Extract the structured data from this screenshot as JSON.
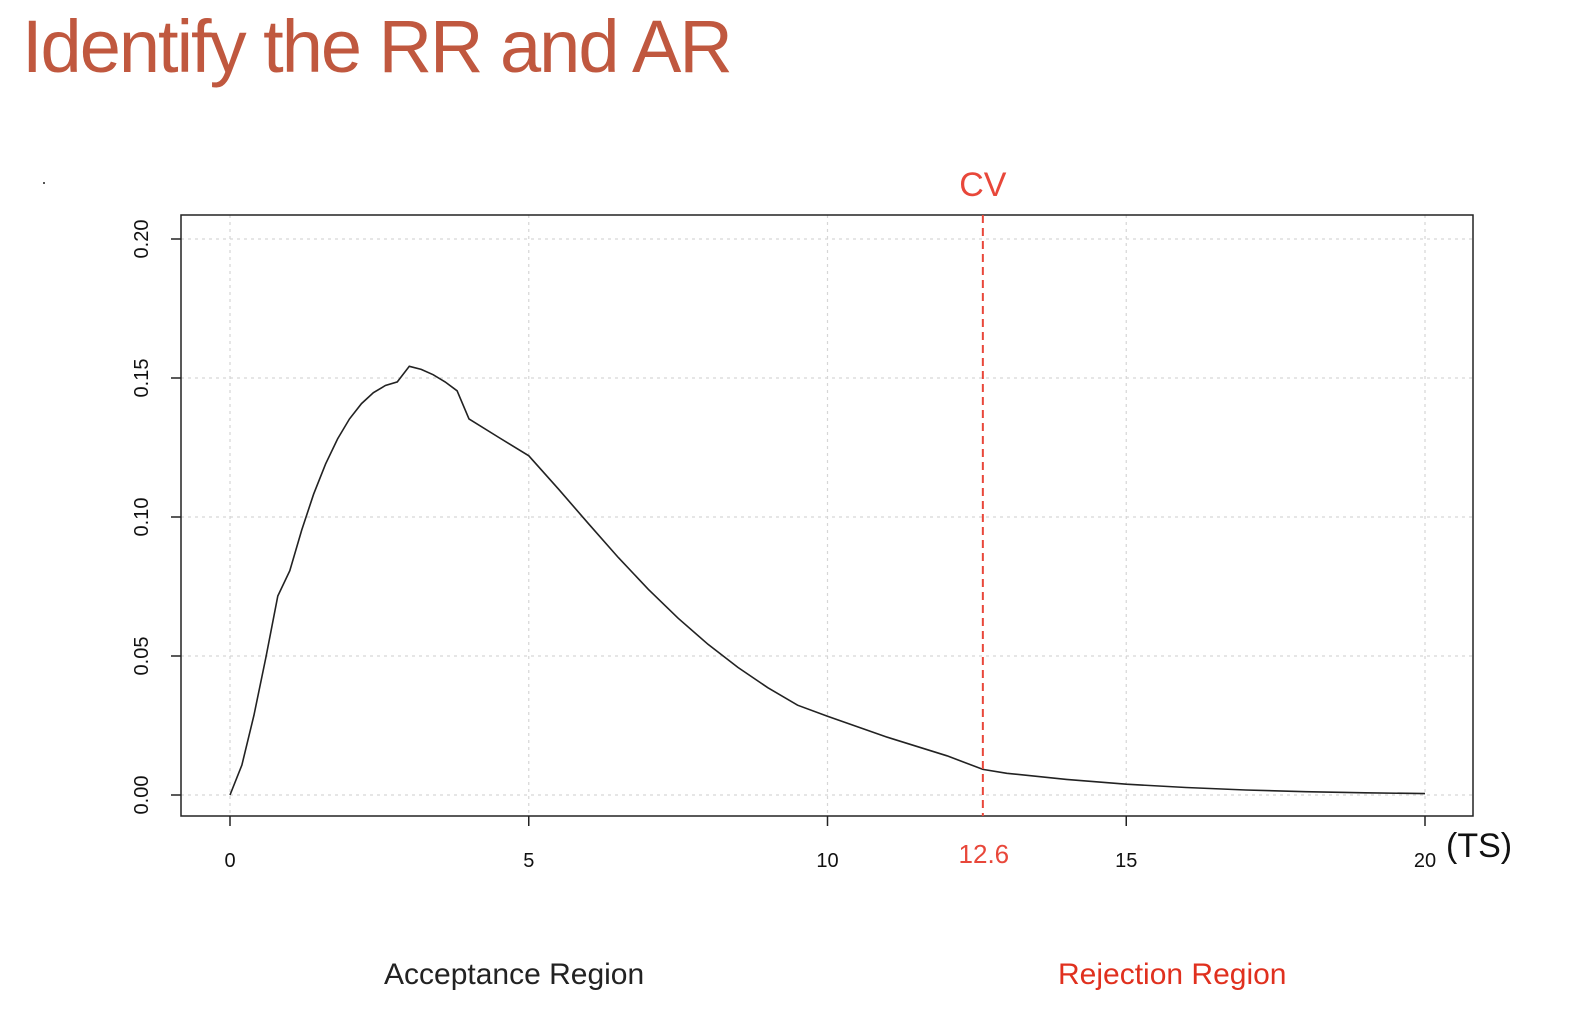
{
  "slide": {
    "title": "Identify the RR and AR",
    "title_color": "#c0583f"
  },
  "regions": {
    "acceptance_label": "Acceptance Region",
    "acceptance_color": "#222222",
    "rejection_label": "Rejection Region",
    "rejection_color": "#e0301e"
  },
  "chart_data": {
    "type": "line",
    "distribution": "chi-square",
    "df": 5,
    "xlim": [
      0,
      20
    ],
    "ylim": [
      0,
      0.2
    ],
    "x_ticks": [
      "0",
      "5",
      "10",
      "15",
      "20"
    ],
    "x_tick_values": [
      0,
      5,
      10,
      15,
      20
    ],
    "y_ticks": [
      "0.00",
      "0.05",
      "0.10",
      "0.15",
      "0.20"
    ],
    "y_tick_values": [
      0,
      0.05,
      0.1,
      0.15,
      0.2
    ],
    "x_axis_label": "(TS)",
    "grid": true,
    "series": [
      {
        "x": [
          0,
          0.2,
          0.4,
          0.6,
          0.8,
          1,
          1.2,
          1.4,
          1.6,
          1.8,
          2,
          2.2,
          2.4,
          2.6,
          2.8,
          3,
          3.2,
          3.4,
          3.6,
          3.8,
          4,
          4.5,
          5,
          5.5,
          6,
          6.5,
          7,
          7.5,
          8,
          8.5,
          9,
          9.5,
          10,
          11,
          12,
          12.6,
          13,
          14,
          15,
          16,
          17,
          18,
          19,
          20
        ],
        "y": [
          0,
          0.0108,
          0.0286,
          0.0495,
          0.0716,
          0.0807,
          0.0953,
          0.1082,
          0.1191,
          0.1281,
          0.1353,
          0.1408,
          0.1447,
          0.1473,
          0.1486,
          0.1542,
          0.1531,
          0.1512,
          0.1486,
          0.1454,
          0.1353,
          0.1286,
          0.122,
          0.11,
          0.0976,
          0.0854,
          0.074,
          0.0636,
          0.0542,
          0.0459,
          0.0386,
          0.0323,
          0.0283,
          0.0208,
          0.0141,
          0.0092,
          0.0078,
          0.0056,
          0.0039,
          0.0027,
          0.0018,
          0.0012,
          0.0008,
          0.0005
        ],
        "color": "#222222"
      }
    ],
    "critical_value": {
      "label": "CV",
      "value": 12.6,
      "value_label": "12.6",
      "color": "#e8473a"
    }
  }
}
